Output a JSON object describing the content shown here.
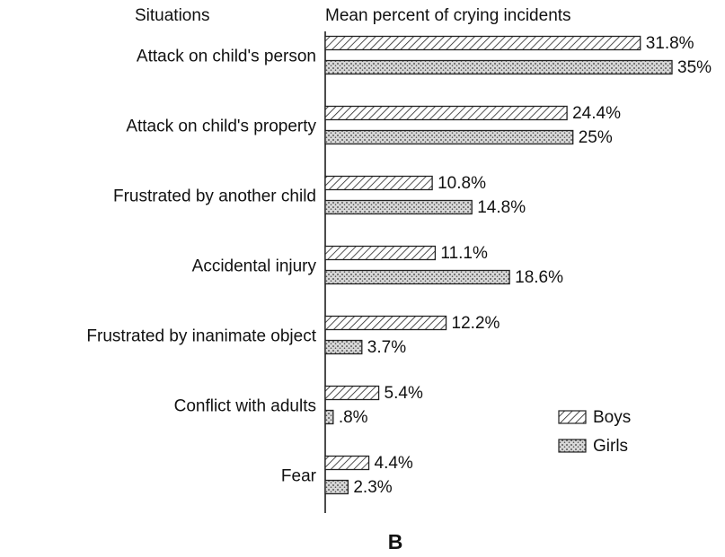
{
  "chart_data": {
    "type": "bar",
    "orientation": "horizontal",
    "category_axis_title": "Situations",
    "value_axis_title": "Mean percent of crying incidents",
    "caption": "B",
    "categories": [
      "Attack on child's person",
      "Attack on child's property",
      "Frustrated by another child",
      "Accidental injury",
      "Frustrated by inanimate object",
      "Conflict with adults",
      "Fear"
    ],
    "series": [
      {
        "name": "Boys",
        "color": "#222222",
        "pattern": "hatch",
        "values": [
          31.8,
          24.4,
          10.8,
          11.1,
          12.2,
          5.4,
          4.4
        ],
        "value_labels": [
          "31.8%",
          "24.4%",
          "10.8%",
          "11.1%",
          "12.2%",
          "5.4%",
          "4.4%"
        ]
      },
      {
        "name": "Girls",
        "color": "#222222",
        "pattern": "stipple",
        "values": [
          35,
          25,
          14.8,
          18.6,
          3.7,
          0.8,
          2.3
        ],
        "value_labels": [
          "35%",
          "25%",
          "14.8%",
          "18.6%",
          "3.7%",
          ".8%",
          "2.3%"
        ]
      }
    ],
    "xlim": [
      0,
      35
    ],
    "legend": "lower right"
  }
}
